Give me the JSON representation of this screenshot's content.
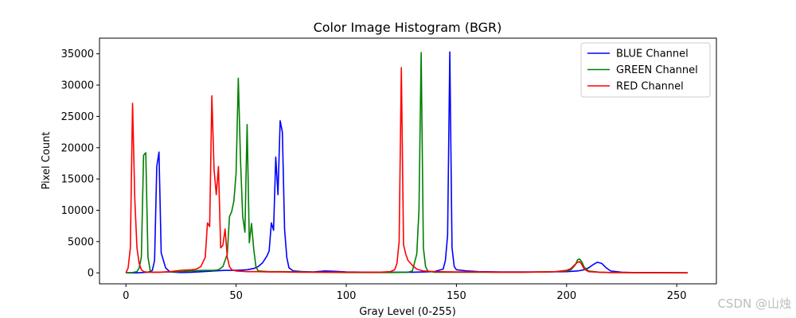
{
  "watermark": "CSDN @山烛",
  "chart_data": {
    "type": "line",
    "title": "Color Image Histogram (BGR)",
    "xlabel": "Gray Level (0-255)",
    "ylabel": "Pixel Count",
    "xlim": [
      -12,
      268
    ],
    "ylim": [
      -1750,
      37500
    ],
    "xticks": [
      0,
      50,
      100,
      150,
      200,
      250
    ],
    "yticks": [
      0,
      5000,
      10000,
      15000,
      20000,
      25000,
      30000,
      35000
    ],
    "grid": false,
    "legend_position": "top-right",
    "series": [
      {
        "name": "BLUE Channel",
        "color": "#0000ff",
        "points": [
          [
            0,
            0
          ],
          [
            5,
            0
          ],
          [
            10,
            100
          ],
          [
            12,
            400
          ],
          [
            13,
            2000
          ],
          [
            14,
            17000
          ],
          [
            15,
            19300
          ],
          [
            16,
            3200
          ],
          [
            18,
            800
          ],
          [
            20,
            150
          ],
          [
            25,
            50
          ],
          [
            30,
            100
          ],
          [
            35,
            200
          ],
          [
            40,
            300
          ],
          [
            45,
            400
          ],
          [
            50,
            400
          ],
          [
            55,
            500
          ],
          [
            58,
            700
          ],
          [
            60,
            1000
          ],
          [
            62,
            1600
          ],
          [
            64,
            2700
          ],
          [
            65,
            3500
          ],
          [
            66,
            8000
          ],
          [
            67,
            6800
          ],
          [
            68,
            18500
          ],
          [
            69,
            12500
          ],
          [
            70,
            24300
          ],
          [
            71,
            22500
          ],
          [
            72,
            7000
          ],
          [
            73,
            2500
          ],
          [
            74,
            800
          ],
          [
            76,
            300
          ],
          [
            80,
            200
          ],
          [
            85,
            150
          ],
          [
            90,
            300
          ],
          [
            95,
            250
          ],
          [
            100,
            150
          ],
          [
            110,
            100
          ],
          [
            120,
            100
          ],
          [
            130,
            100
          ],
          [
            140,
            200
          ],
          [
            144,
            600
          ],
          [
            145,
            2000
          ],
          [
            146,
            6000
          ],
          [
            147,
            35300
          ],
          [
            148,
            4000
          ],
          [
            149,
            1000
          ],
          [
            150,
            500
          ],
          [
            155,
            300
          ],
          [
            160,
            200
          ],
          [
            170,
            150
          ],
          [
            180,
            150
          ],
          [
            190,
            150
          ],
          [
            200,
            200
          ],
          [
            205,
            300
          ],
          [
            208,
            500
          ],
          [
            210,
            800
          ],
          [
            212,
            1300
          ],
          [
            214,
            1700
          ],
          [
            216,
            1500
          ],
          [
            218,
            800
          ],
          [
            220,
            300
          ],
          [
            225,
            100
          ],
          [
            230,
            50
          ],
          [
            255,
            0
          ]
        ]
      },
      {
        "name": "GREEN Channel",
        "color": "#008000",
        "points": [
          [
            0,
            0
          ],
          [
            3,
            50
          ],
          [
            5,
            200
          ],
          [
            6,
            800
          ],
          [
            7,
            2500
          ],
          [
            8,
            18800
          ],
          [
            9,
            19200
          ],
          [
            10,
            2500
          ],
          [
            11,
            400
          ],
          [
            12,
            100
          ],
          [
            15,
            100
          ],
          [
            20,
            150
          ],
          [
            25,
            200
          ],
          [
            30,
            300
          ],
          [
            35,
            400
          ],
          [
            40,
            400
          ],
          [
            42,
            500
          ],
          [
            44,
            1000
          ],
          [
            46,
            3000
          ],
          [
            47,
            9000
          ],
          [
            48,
            9800
          ],
          [
            49,
            11500
          ],
          [
            50,
            16000
          ],
          [
            51,
            31100
          ],
          [
            52,
            18000
          ],
          [
            53,
            9000
          ],
          [
            54,
            6500
          ],
          [
            55,
            23700
          ],
          [
            56,
            4800
          ],
          [
            57,
            7900
          ],
          [
            58,
            3800
          ],
          [
            59,
            1000
          ],
          [
            60,
            300
          ],
          [
            65,
            200
          ],
          [
            70,
            200
          ],
          [
            80,
            150
          ],
          [
            90,
            100
          ],
          [
            100,
            50
          ],
          [
            110,
            50
          ],
          [
            120,
            50
          ],
          [
            128,
            100
          ],
          [
            130,
            300
          ],
          [
            132,
            3000
          ],
          [
            133,
            10000
          ],
          [
            134,
            35200
          ],
          [
            135,
            4000
          ],
          [
            136,
            1000
          ],
          [
            137,
            300
          ],
          [
            140,
            100
          ],
          [
            150,
            100
          ],
          [
            160,
            100
          ],
          [
            170,
            100
          ],
          [
            180,
            100
          ],
          [
            190,
            150
          ],
          [
            195,
            200
          ],
          [
            200,
            300
          ],
          [
            202,
            500
          ],
          [
            204,
            1300
          ],
          [
            205,
            2100
          ],
          [
            206,
            2200
          ],
          [
            207,
            1700
          ],
          [
            208,
            900
          ],
          [
            210,
            300
          ],
          [
            215,
            100
          ],
          [
            220,
            50
          ],
          [
            255,
            0
          ]
        ]
      },
      {
        "name": "RED Channel",
        "color": "#ff0000",
        "points": [
          [
            0,
            0
          ],
          [
            1,
            800
          ],
          [
            2,
            4000
          ],
          [
            3,
            27100
          ],
          [
            4,
            12000
          ],
          [
            5,
            4000
          ],
          [
            6,
            1500
          ],
          [
            7,
            500
          ],
          [
            8,
            200
          ],
          [
            10,
            100
          ],
          [
            15,
            100
          ],
          [
            20,
            200
          ],
          [
            25,
            400
          ],
          [
            30,
            500
          ],
          [
            32,
            600
          ],
          [
            34,
            1000
          ],
          [
            36,
            2500
          ],
          [
            37,
            8000
          ],
          [
            38,
            7400
          ],
          [
            39,
            28300
          ],
          [
            40,
            16500
          ],
          [
            41,
            12500
          ],
          [
            42,
            17000
          ],
          [
            43,
            4000
          ],
          [
            44,
            4400
          ],
          [
            45,
            7000
          ],
          [
            46,
            2500
          ],
          [
            47,
            1000
          ],
          [
            48,
            500
          ],
          [
            50,
            300
          ],
          [
            55,
            200
          ],
          [
            60,
            200
          ],
          [
            65,
            150
          ],
          [
            70,
            150
          ],
          [
            80,
            100
          ],
          [
            90,
            100
          ],
          [
            100,
            100
          ],
          [
            110,
            100
          ],
          [
            115,
            100
          ],
          [
            120,
            200
          ],
          [
            122,
            500
          ],
          [
            123,
            1500
          ],
          [
            124,
            5000
          ],
          [
            125,
            32800
          ],
          [
            126,
            4500
          ],
          [
            127,
            3000
          ],
          [
            128,
            2000
          ],
          [
            130,
            1200
          ],
          [
            132,
            600
          ],
          [
            135,
            300
          ],
          [
            140,
            200
          ],
          [
            150,
            150
          ],
          [
            160,
            150
          ],
          [
            170,
            100
          ],
          [
            180,
            100
          ],
          [
            190,
            150
          ],
          [
            195,
            200
          ],
          [
            200,
            400
          ],
          [
            202,
            700
          ],
          [
            204,
            1400
          ],
          [
            205,
            1700
          ],
          [
            206,
            1800
          ],
          [
            207,
            1300
          ],
          [
            208,
            600
          ],
          [
            210,
            200
          ],
          [
            215,
            100
          ],
          [
            220,
            50
          ],
          [
            255,
            0
          ]
        ]
      }
    ]
  }
}
